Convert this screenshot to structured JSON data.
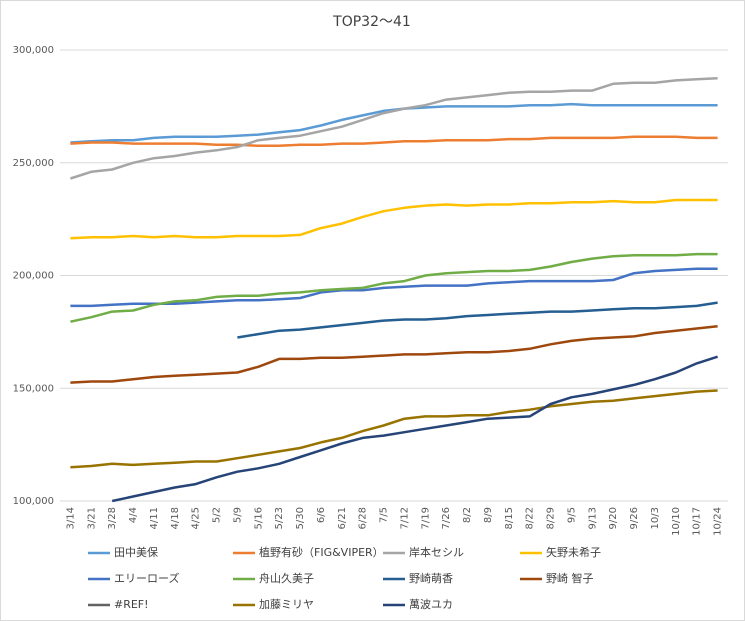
{
  "chart_data": {
    "type": "line",
    "title": "TOP32～41",
    "categories": [
      "3/14",
      "3/21",
      "3/28",
      "4/4",
      "4/11",
      "4/18",
      "4/25",
      "5/2",
      "5/9",
      "5/16",
      "5/23",
      "5/30",
      "6/6",
      "6/21",
      "6/28",
      "7/5",
      "7/12",
      "7/19",
      "7/26",
      "8/2",
      "8/9",
      "8/15",
      "8/22",
      "8/29",
      "9/5",
      "9/13",
      "9/20",
      "9/26",
      "10/3",
      "10/10",
      "10/17",
      "10/24"
    ],
    "ylim": [
      100000,
      300000
    ],
    "yticks": [
      {
        "value": 100000,
        "label": "100,000"
      },
      {
        "value": 150000,
        "label": "150,000"
      },
      {
        "value": 200000,
        "label": "200,000"
      },
      {
        "value": 250000,
        "label": "250,000"
      },
      {
        "value": 300000,
        "label": "300,000"
      }
    ],
    "grid": true,
    "legend": "bottom",
    "series": [
      {
        "name": "田中美保",
        "color": "#5b9bd5",
        "values": [
          259000,
          259500,
          260000,
          260000,
          261000,
          261500,
          261500,
          261500,
          262000,
          262500,
          263500,
          264500,
          266500,
          269000,
          271000,
          273000,
          274000,
          274500,
          275000,
          275000,
          275000,
          275000,
          275500,
          275500,
          276000,
          275500,
          275500,
          275500,
          275500,
          275500,
          275500,
          275500
        ]
      },
      {
        "name": "植野有砂（FIG&VIPER）",
        "color": "#ed7d31",
        "values": [
          258500,
          259000,
          259000,
          258500,
          258500,
          258500,
          258500,
          258000,
          258000,
          257500,
          257500,
          258000,
          258000,
          258500,
          258500,
          259000,
          259500,
          259500,
          260000,
          260000,
          260000,
          260500,
          260500,
          261000,
          261000,
          261000,
          261000,
          261500,
          261500,
          261500,
          261000,
          261000
        ]
      },
      {
        "name": "岸本セシル",
        "color": "#a5a5a5",
        "values": [
          243000,
          246000,
          247000,
          250000,
          252000,
          253000,
          254500,
          255500,
          257000,
          260000,
          261000,
          262000,
          264000,
          266000,
          269000,
          272000,
          274000,
          275500,
          278000,
          279000,
          280000,
          281000,
          281500,
          281500,
          282000,
          282000,
          285000,
          285500,
          285500,
          286500,
          287000,
          287500
        ]
      },
      {
        "name": "矢野未希子",
        "color": "#ffc000",
        "values": [
          216500,
          217000,
          217000,
          217500,
          217000,
          217500,
          217000,
          217000,
          217500,
          217500,
          217500,
          218000,
          221000,
          223000,
          226000,
          228500,
          230000,
          231000,
          231500,
          231000,
          231500,
          231500,
          232000,
          232000,
          232500,
          232500,
          233000,
          232500,
          232500,
          233500,
          233500,
          233500
        ]
      },
      {
        "name": "エリーローズ",
        "color": "#4472c4",
        "values": [
          186500,
          186500,
          187000,
          187500,
          187500,
          187500,
          188000,
          188500,
          189000,
          189000,
          189500,
          190000,
          192500,
          193500,
          193500,
          194500,
          195000,
          195500,
          195500,
          195500,
          196500,
          197000,
          197500,
          197500,
          197500,
          197500,
          198000,
          201000,
          202000,
          202500,
          203000,
          203000
        ]
      },
      {
        "name": "舟山久美子",
        "color": "#70ad47",
        "values": [
          179500,
          181500,
          184000,
          184500,
          187000,
          188500,
          189000,
          190500,
          191000,
          191000,
          192000,
          192500,
          193500,
          194000,
          194500,
          196500,
          197500,
          200000,
          201000,
          201500,
          202000,
          202000,
          202500,
          204000,
          206000,
          207500,
          208500,
          209000,
          209000,
          209000,
          209500,
          209500
        ]
      },
      {
        "name": "野崎萌香",
        "color": "#255e91",
        "values": [
          null,
          null,
          null,
          null,
          null,
          null,
          null,
          null,
          172500,
          174000,
          175500,
          176000,
          177000,
          178000,
          179000,
          180000,
          180500,
          180500,
          181000,
          182000,
          182500,
          183000,
          183500,
          184000,
          184000,
          184500,
          185000,
          185500,
          185500,
          186000,
          186500,
          188000
        ]
      },
      {
        "name": "野崎 智子",
        "color": "#9e480e",
        "values": [
          152500,
          153000,
          153000,
          154000,
          155000,
          155500,
          156000,
          156500,
          157000,
          159500,
          163000,
          163000,
          163500,
          163500,
          164000,
          164500,
          165000,
          165000,
          165500,
          166000,
          166000,
          166500,
          167500,
          169500,
          171000,
          172000,
          172500,
          173000,
          174500,
          175500,
          176500,
          177500
        ]
      },
      {
        "name": "#REF!",
        "color": "#636363",
        "values": [
          null,
          null,
          null,
          null,
          null,
          null,
          null,
          null,
          null,
          null,
          null,
          null,
          null,
          null,
          null,
          null,
          null,
          null,
          null,
          null,
          null,
          null,
          null,
          null,
          null,
          null,
          null,
          null,
          null,
          null,
          null,
          null
        ]
      },
      {
        "name": "加藤ミリヤ",
        "color": "#997300",
        "values": [
          115000,
          115500,
          116500,
          116000,
          116500,
          117000,
          117500,
          117500,
          119000,
          120500,
          122000,
          123500,
          126000,
          128000,
          131000,
          133500,
          136500,
          137500,
          137500,
          138000,
          138000,
          139500,
          140500,
          142000,
          143000,
          144000,
          144500,
          145500,
          146500,
          147500,
          148500,
          149000
        ]
      },
      {
        "name": "萬波ユカ",
        "color": "#264478",
        "values": [
          null,
          null,
          100000,
          102000,
          104000,
          106000,
          107500,
          110500,
          113000,
          114500,
          116500,
          119500,
          122500,
          125500,
          128000,
          129000,
          130500,
          132000,
          133500,
          135000,
          136500,
          137000,
          137500,
          143000,
          146000,
          147500,
          149500,
          151500,
          154000,
          157000,
          161000,
          164000
        ]
      }
    ]
  }
}
